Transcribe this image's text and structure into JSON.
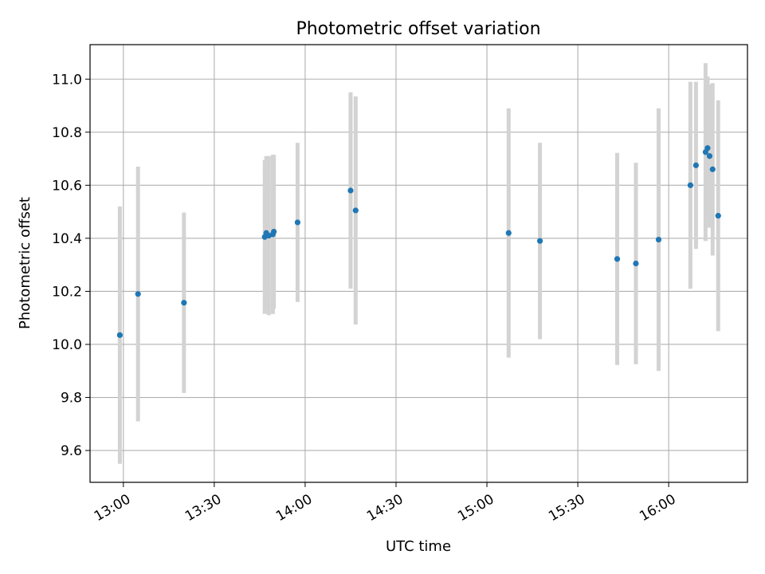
{
  "chart_data": {
    "type": "scatter",
    "title": "Photometric offset variation",
    "xlabel": "UTC time",
    "ylabel": "Photometric offset",
    "xlim": [
      "12:49",
      "16:26"
    ],
    "ylim": [
      9.48,
      11.13
    ],
    "grid": true,
    "x_ticks": [
      "13:00",
      "13:30",
      "14:00",
      "14:30",
      "15:00",
      "15:30",
      "16:00"
    ],
    "y_ticks": [
      "9.6",
      "9.8",
      "10.0",
      "10.2",
      "10.4",
      "10.6",
      "10.8",
      "11.0"
    ],
    "colors": {
      "point": "#1f77b4",
      "errorbar": "#d3d3d3",
      "grid": "#b0b0b0"
    },
    "series": [
      {
        "points": [
          {
            "x": "12:58:50",
            "y": 10.035,
            "err": 0.485
          },
          {
            "x": "13:04:50",
            "y": 10.19,
            "err": 0.48
          },
          {
            "x": "13:20:00",
            "y": 10.157,
            "err": 0.34
          },
          {
            "x": "13:46:40",
            "y": 10.405,
            "err": 0.29
          },
          {
            "x": "13:47:10",
            "y": 10.42,
            "err": 0.29
          },
          {
            "x": "13:48:00",
            "y": 10.41,
            "err": 0.3
          },
          {
            "x": "13:49:20",
            "y": 10.415,
            "err": 0.3
          },
          {
            "x": "13:49:40",
            "y": 10.425,
            "err": 0.29
          },
          {
            "x": "13:57:30",
            "y": 10.46,
            "err": 0.3
          },
          {
            "x": "14:15:00",
            "y": 10.58,
            "err": 0.37
          },
          {
            "x": "14:16:40",
            "y": 10.505,
            "err": 0.43
          },
          {
            "x": "15:07:10",
            "y": 10.42,
            "err": 0.47
          },
          {
            "x": "15:17:30",
            "y": 10.39,
            "err": 0.37
          },
          {
            "x": "15:43:00",
            "y": 10.322,
            "err": 0.4
          },
          {
            "x": "15:49:10",
            "y": 10.305,
            "err": 0.38
          },
          {
            "x": "15:56:40",
            "y": 10.395,
            "err": 0.495
          },
          {
            "x": "16:07:10",
            "y": 10.6,
            "err": 0.39
          },
          {
            "x": "16:09:00",
            "y": 10.675,
            "err": 0.315
          },
          {
            "x": "16:12:10",
            "y": 10.725,
            "err": 0.335
          },
          {
            "x": "16:12:50",
            "y": 10.74,
            "err": 0.27
          },
          {
            "x": "16:13:30",
            "y": 10.71,
            "err": 0.27
          },
          {
            "x": "16:14:30",
            "y": 10.66,
            "err": 0.325
          },
          {
            "x": "16:16:20",
            "y": 10.485,
            "err": 0.435
          }
        ]
      }
    ]
  }
}
